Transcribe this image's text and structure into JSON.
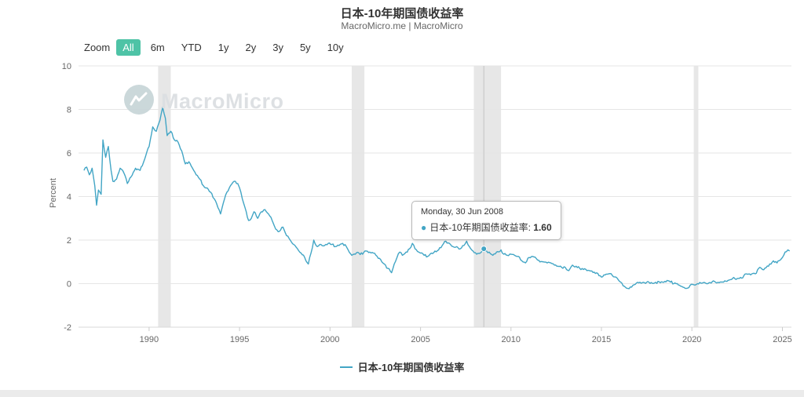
{
  "page": {
    "title": "日本-10年期国债收益率",
    "subtitle": "MacroMicro.me | MacroMicro"
  },
  "toolbar": {
    "zoom_label": "Zoom",
    "buttons": [
      "All",
      "6m",
      "YTD",
      "1y",
      "2y",
      "3y",
      "5y",
      "10y"
    ],
    "selected": "All",
    "selected_color": "#4ec3a6"
  },
  "watermark": {
    "text": "MacroMicro"
  },
  "tooltip": {
    "date": "Monday, 30 Jun 2008",
    "series_label": "日本-10年期国债收益率:",
    "value": "1.60",
    "bullet": "●",
    "bullet_color": "#42a5c5"
  },
  "legend": {
    "label": "日本-10年期国债收益率",
    "color": "#42a5c5"
  },
  "colors": {
    "line": "#42a5c5",
    "accent_green": "#4ec3a6",
    "plot_band": "#e7e7e7"
  },
  "chart_data": {
    "type": "line",
    "title": "日本-10年期国债收益率",
    "xlabel": "",
    "ylabel": "Percent",
    "ylim": [
      -2,
      10
    ],
    "xlim": [
      1986.1,
      2025.5
    ],
    "yticks": [
      -2,
      0,
      2,
      4,
      6,
      8,
      10
    ],
    "xticks": [
      1990,
      1995,
      2000,
      2005,
      2010,
      2015,
      2020,
      2025
    ],
    "grid": true,
    "legend_position": "bottom",
    "plot_bands": [
      [
        1990.5,
        1991.2
      ],
      [
        2001.2,
        2001.9
      ],
      [
        2007.95,
        2009.45
      ],
      [
        2020.1,
        2020.35
      ]
    ],
    "crosshair_x": 2008.5,
    "hover_point": [
      2008.5,
      1.6
    ],
    "series": [
      {
        "name": "日本-10年期国债收益率",
        "color": "#42a5c5",
        "points": [
          [
            1986.4,
            5.2
          ],
          [
            1986.55,
            5.35
          ],
          [
            1986.7,
            5.0
          ],
          [
            1986.85,
            5.3
          ],
          [
            1987.0,
            4.5
          ],
          [
            1987.1,
            3.6
          ],
          [
            1987.2,
            4.3
          ],
          [
            1987.35,
            4.1
          ],
          [
            1987.45,
            6.6
          ],
          [
            1987.6,
            5.8
          ],
          [
            1987.75,
            6.3
          ],
          [
            1987.9,
            5.2
          ],
          [
            1988.0,
            4.7
          ],
          [
            1988.2,
            4.8
          ],
          [
            1988.4,
            5.3
          ],
          [
            1988.6,
            5.1
          ],
          [
            1988.8,
            4.6
          ],
          [
            1989.0,
            4.9
          ],
          [
            1989.25,
            5.3
          ],
          [
            1989.5,
            5.2
          ],
          [
            1989.75,
            5.7
          ],
          [
            1990.0,
            6.3
          ],
          [
            1990.2,
            7.2
          ],
          [
            1990.4,
            7.0
          ],
          [
            1990.6,
            7.5
          ],
          [
            1990.75,
            8.1
          ],
          [
            1990.9,
            7.6
          ],
          [
            1991.0,
            6.8
          ],
          [
            1991.2,
            7.0
          ],
          [
            1991.4,
            6.6
          ],
          [
            1991.6,
            6.5
          ],
          [
            1991.8,
            6.1
          ],
          [
            1992.0,
            5.5
          ],
          [
            1992.2,
            5.6
          ],
          [
            1992.4,
            5.3
          ],
          [
            1992.6,
            5.0
          ],
          [
            1992.8,
            4.8
          ],
          [
            1993.0,
            4.5
          ],
          [
            1993.2,
            4.4
          ],
          [
            1993.4,
            4.2
          ],
          [
            1993.6,
            3.9
          ],
          [
            1993.8,
            3.5
          ],
          [
            1993.95,
            3.2
          ],
          [
            1994.1,
            3.7
          ],
          [
            1994.3,
            4.2
          ],
          [
            1994.5,
            4.5
          ],
          [
            1994.7,
            4.7
          ],
          [
            1994.9,
            4.6
          ],
          [
            1995.0,
            4.4
          ],
          [
            1995.15,
            3.9
          ],
          [
            1995.3,
            3.5
          ],
          [
            1995.5,
            2.9
          ],
          [
            1995.65,
            3.0
          ],
          [
            1995.8,
            3.3
          ],
          [
            1996.0,
            3.0
          ],
          [
            1996.2,
            3.3
          ],
          [
            1996.4,
            3.4
          ],
          [
            1996.6,
            3.2
          ],
          [
            1996.8,
            2.9
          ],
          [
            1997.0,
            2.5
          ],
          [
            1997.2,
            2.4
          ],
          [
            1997.4,
            2.6
          ],
          [
            1997.6,
            2.2
          ],
          [
            1997.8,
            2.0
          ],
          [
            1998.0,
            1.8
          ],
          [
            1998.2,
            1.6
          ],
          [
            1998.4,
            1.4
          ],
          [
            1998.6,
            1.2
          ],
          [
            1998.8,
            0.9
          ],
          [
            1998.95,
            1.4
          ],
          [
            1999.1,
            2.0
          ],
          [
            1999.3,
            1.7
          ],
          [
            1999.5,
            1.8
          ],
          [
            1999.7,
            1.75
          ],
          [
            1999.9,
            1.85
          ],
          [
            2000.1,
            1.8
          ],
          [
            2000.3,
            1.7
          ],
          [
            2000.5,
            1.75
          ],
          [
            2000.7,
            1.85
          ],
          [
            2000.9,
            1.7
          ],
          [
            2001.0,
            1.55
          ],
          [
            2001.2,
            1.3
          ],
          [
            2001.4,
            1.35
          ],
          [
            2001.6,
            1.4
          ],
          [
            2001.8,
            1.35
          ],
          [
            2002.0,
            1.5
          ],
          [
            2002.2,
            1.45
          ],
          [
            2002.4,
            1.4
          ],
          [
            2002.6,
            1.25
          ],
          [
            2002.8,
            1.1
          ],
          [
            2003.0,
            0.9
          ],
          [
            2003.2,
            0.7
          ],
          [
            2003.4,
            0.5
          ],
          [
            2003.55,
            0.9
          ],
          [
            2003.7,
            1.2
          ],
          [
            2003.85,
            1.45
          ],
          [
            2004.0,
            1.3
          ],
          [
            2004.2,
            1.45
          ],
          [
            2004.4,
            1.6
          ],
          [
            2004.55,
            1.85
          ],
          [
            2004.7,
            1.6
          ],
          [
            2004.9,
            1.45
          ],
          [
            2005.0,
            1.4
          ],
          [
            2005.2,
            1.3
          ],
          [
            2005.4,
            1.25
          ],
          [
            2005.6,
            1.4
          ],
          [
            2005.8,
            1.5
          ],
          [
            2006.0,
            1.55
          ],
          [
            2006.2,
            1.75
          ],
          [
            2006.4,
            1.95
          ],
          [
            2006.6,
            1.85
          ],
          [
            2006.8,
            1.7
          ],
          [
            2007.0,
            1.7
          ],
          [
            2007.2,
            1.6
          ],
          [
            2007.4,
            1.75
          ],
          [
            2007.55,
            1.95
          ],
          [
            2007.7,
            1.7
          ],
          [
            2007.9,
            1.5
          ],
          [
            2008.1,
            1.35
          ],
          [
            2008.3,
            1.4
          ],
          [
            2008.5,
            1.6
          ],
          [
            2008.65,
            1.5
          ],
          [
            2008.8,
            1.45
          ],
          [
            2009.0,
            1.3
          ],
          [
            2009.2,
            1.45
          ],
          [
            2009.45,
            1.55
          ],
          [
            2009.6,
            1.35
          ],
          [
            2009.8,
            1.3
          ],
          [
            2010.0,
            1.35
          ],
          [
            2010.2,
            1.3
          ],
          [
            2010.4,
            1.25
          ],
          [
            2010.6,
            1.05
          ],
          [
            2010.8,
            0.95
          ],
          [
            2011.0,
            1.2
          ],
          [
            2011.2,
            1.25
          ],
          [
            2011.4,
            1.15
          ],
          [
            2011.6,
            1.0
          ],
          [
            2011.8,
            1.0
          ],
          [
            2012.0,
            0.95
          ],
          [
            2012.2,
            0.95
          ],
          [
            2012.4,
            0.85
          ],
          [
            2012.6,
            0.8
          ],
          [
            2012.8,
            0.75
          ],
          [
            2013.0,
            0.75
          ],
          [
            2013.2,
            0.6
          ],
          [
            2013.4,
            0.85
          ],
          [
            2013.6,
            0.8
          ],
          [
            2013.8,
            0.7
          ],
          [
            2014.0,
            0.65
          ],
          [
            2014.2,
            0.6
          ],
          [
            2014.4,
            0.58
          ],
          [
            2014.6,
            0.53
          ],
          [
            2014.8,
            0.47
          ],
          [
            2015.0,
            0.3
          ],
          [
            2015.2,
            0.4
          ],
          [
            2015.4,
            0.45
          ],
          [
            2015.6,
            0.38
          ],
          [
            2015.8,
            0.3
          ],
          [
            2016.0,
            0.1
          ],
          [
            2016.2,
            -0.1
          ],
          [
            2016.45,
            -0.22
          ],
          [
            2016.6,
            -0.15
          ],
          [
            2016.8,
            -0.05
          ],
          [
            2017.0,
            0.06
          ],
          [
            2017.25,
            0.04
          ],
          [
            2017.5,
            0.06
          ],
          [
            2017.75,
            0.05
          ],
          [
            2018.0,
            0.06
          ],
          [
            2018.25,
            0.04
          ],
          [
            2018.5,
            0.1
          ],
          [
            2018.75,
            0.12
          ],
          [
            2019.0,
            0.0
          ],
          [
            2019.25,
            -0.06
          ],
          [
            2019.5,
            -0.16
          ],
          [
            2019.7,
            -0.22
          ],
          [
            2019.9,
            -0.08
          ],
          [
            2020.1,
            -0.05
          ],
          [
            2020.3,
            0.0
          ],
          [
            2020.5,
            0.02
          ],
          [
            2020.75,
            0.03
          ],
          [
            2021.0,
            0.05
          ],
          [
            2021.25,
            0.1
          ],
          [
            2021.5,
            0.04
          ],
          [
            2021.75,
            0.07
          ],
          [
            2022.0,
            0.15
          ],
          [
            2022.25,
            0.24
          ],
          [
            2022.5,
            0.23
          ],
          [
            2022.75,
            0.25
          ],
          [
            2023.0,
            0.45
          ],
          [
            2023.25,
            0.4
          ],
          [
            2023.5,
            0.45
          ],
          [
            2023.75,
            0.75
          ],
          [
            2023.9,
            0.65
          ],
          [
            2024.1,
            0.73
          ],
          [
            2024.3,
            0.9
          ],
          [
            2024.5,
            1.05
          ],
          [
            2024.7,
            0.95
          ],
          [
            2024.9,
            1.1
          ],
          [
            2025.0,
            1.2
          ],
          [
            2025.15,
            1.45
          ],
          [
            2025.3,
            1.55
          ],
          [
            2025.4,
            1.5
          ]
        ]
      }
    ]
  }
}
